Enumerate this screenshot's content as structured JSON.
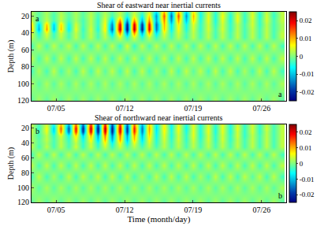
{
  "chart_data": [
    {
      "type": "heatmap",
      "title": "Shear of eastward near inertial currents",
      "y_label": "Depth (m)",
      "annotations": [
        "a",
        "a"
      ],
      "xlim": [
        2.5,
        28.5
      ],
      "xticks": [
        {
          "value": 5,
          "label": "07/05"
        },
        {
          "value": 12,
          "label": "07/12"
        },
        {
          "value": 19,
          "label": "07/19"
        },
        {
          "value": 26,
          "label": "07/26"
        }
      ],
      "ylim": [
        120,
        15
      ],
      "yticks": [
        20,
        40,
        60,
        80,
        100,
        120
      ],
      "colorbar": {
        "range": [
          -0.025,
          0.025
        ],
        "ticks": [
          -0.02,
          -0.01,
          0,
          0.01,
          0.02
        ]
      },
      "x": [
        2.5,
        3.25,
        4,
        4.75,
        5.5,
        6.25,
        7,
        7.75,
        8.5,
        9.25,
        10,
        10.75,
        11.5,
        12.25,
        13,
        13.75,
        14.5,
        15.25,
        16,
        16.75,
        17.5,
        18.25,
        19,
        19.75,
        20.5,
        21.25,
        22,
        22.75,
        23.5,
        24.25,
        25,
        25.75,
        26.5,
        27.25,
        28
      ],
      "y": [
        15,
        20,
        25,
        30,
        35,
        40,
        45,
        55,
        70,
        85,
        100,
        120
      ],
      "z": [
        [
          0.002,
          -0.002,
          0.002,
          -0.002,
          0.002,
          -0.002,
          0.002,
          -0.002,
          0.002,
          -0.002,
          0.002,
          -0.002,
          0.003,
          -0.003,
          0.003,
          -0.003,
          0.004,
          -0.008,
          0.01,
          -0.011,
          0.01,
          -0.009,
          0.007,
          -0.005,
          0.004,
          -0.004,
          0.004,
          -0.003,
          0.003,
          -0.003,
          0.004,
          -0.004,
          0.003,
          -0.003,
          0.003
        ],
        [
          0.002,
          -0.002,
          0.002,
          -0.003,
          0.003,
          -0.002,
          0.002,
          -0.002,
          0.003,
          -0.003,
          0.003,
          -0.003,
          0.004,
          -0.005,
          0.005,
          -0.006,
          0.008,
          -0.013,
          0.015,
          -0.016,
          0.015,
          -0.013,
          0.01,
          -0.006,
          0.005,
          -0.005,
          0.006,
          -0.005,
          0.005,
          -0.004,
          0.005,
          -0.005,
          0.004,
          -0.004,
          0.003
        ],
        [
          0.003,
          -0.003,
          0.003,
          -0.003,
          0.003,
          -0.003,
          0.002,
          -0.003,
          0.003,
          -0.004,
          0.005,
          -0.009,
          0.012,
          -0.013,
          0.012,
          -0.011,
          0.012,
          -0.012,
          0.012,
          -0.013,
          0.011,
          -0.01,
          0.008,
          -0.005,
          0.005,
          -0.005,
          0.005,
          -0.005,
          0.005,
          -0.004,
          0.004,
          -0.004,
          0.004,
          -0.003,
          0.003
        ],
        [
          0.007,
          -0.009,
          0.009,
          -0.009,
          0.008,
          -0.006,
          0.004,
          -0.003,
          0.003,
          -0.004,
          0.006,
          -0.014,
          0.02,
          -0.022,
          0.021,
          -0.02,
          0.019,
          -0.016,
          0.01,
          -0.008,
          0.007,
          -0.006,
          0.005,
          -0.004,
          0.004,
          -0.004,
          0.004,
          -0.004,
          0.003,
          -0.003,
          0.004,
          -0.004,
          0.003,
          -0.003,
          0.002
        ],
        [
          0.009,
          -0.011,
          0.011,
          -0.01,
          0.009,
          -0.007,
          0.005,
          -0.004,
          0.004,
          -0.005,
          0.007,
          -0.016,
          0.022,
          -0.024,
          0.023,
          -0.022,
          0.02,
          -0.015,
          0.009,
          -0.007,
          0.006,
          -0.005,
          0.004,
          -0.004,
          0.004,
          -0.003,
          0.004,
          -0.004,
          0.003,
          -0.003,
          0.003,
          -0.003,
          0.003,
          -0.003,
          0.002
        ],
        [
          0.004,
          -0.005,
          0.005,
          -0.004,
          0.004,
          -0.003,
          0.003,
          -0.003,
          0.003,
          -0.003,
          0.004,
          -0.009,
          0.012,
          -0.013,
          0.012,
          -0.011,
          0.01,
          -0.008,
          0.005,
          -0.004,
          0.004,
          -0.003,
          0.003,
          -0.003,
          0.003,
          -0.003,
          0.003,
          -0.003,
          0.003,
          -0.003,
          0.003,
          -0.003,
          0.003,
          -0.003,
          0.003
        ],
        [
          0.003,
          -0.003,
          0.003,
          -0.003,
          0.003,
          -0.003,
          0.003,
          -0.003,
          0.003,
          -0.003,
          0.003,
          -0.004,
          0.005,
          -0.005,
          0.005,
          -0.005,
          0.004,
          -0.004,
          0.003,
          -0.003,
          0.003,
          -0.003,
          0.003,
          -0.003,
          0.003,
          -0.003,
          0.003,
          -0.003,
          0.003,
          -0.003,
          0.003,
          -0.003,
          0.003,
          -0.003,
          0.003
        ],
        [
          -0.003,
          0.003,
          -0.003,
          0.003,
          -0.002,
          0.003,
          -0.003,
          0.003,
          -0.003,
          0.003,
          -0.003,
          0.003,
          -0.004,
          0.004,
          -0.004,
          0.003,
          -0.003,
          0.003,
          -0.003,
          0.003,
          -0.003,
          0.003,
          -0.003,
          0.003,
          -0.003,
          0.003,
          -0.003,
          0.003,
          -0.003,
          0.003,
          -0.003,
          0.003,
          -0.003,
          0.003,
          -0.003
        ],
        [
          0.003,
          -0.003,
          0.003,
          -0.003,
          0.003,
          -0.003,
          0.003,
          -0.003,
          0.003,
          -0.003,
          0.003,
          -0.003,
          0.003,
          -0.003,
          0.003,
          -0.003,
          0.003,
          -0.003,
          0.003,
          -0.003,
          0.003,
          -0.003,
          0.003,
          -0.003,
          0.003,
          -0.003,
          0.003,
          -0.003,
          0.003,
          -0.003,
          0.003,
          -0.003,
          0.003,
          -0.003,
          0.003
        ],
        [
          -0.003,
          0.002,
          -0.003,
          0.003,
          -0.003,
          0.002,
          -0.003,
          0.003,
          -0.003,
          0.003,
          -0.002,
          0.003,
          -0.003,
          0.003,
          -0.003,
          0.003,
          -0.003,
          0.002,
          -0.003,
          0.003,
          -0.003,
          0.003,
          -0.002,
          0.003,
          -0.003,
          0.003,
          -0.003,
          0.003,
          -0.003,
          0.002,
          -0.003,
          0.003,
          -0.003,
          0.003,
          -0.003
        ],
        [
          0.002,
          -0.002,
          0.002,
          -0.002,
          0.002,
          -0.002,
          0.002,
          -0.002,
          0.002,
          -0.002,
          0.002,
          -0.002,
          0.002,
          -0.002,
          0.002,
          -0.002,
          0.002,
          -0.002,
          0.002,
          -0.002,
          0.002,
          -0.002,
          0.002,
          -0.002,
          0.002,
          -0.002,
          0.002,
          -0.002,
          0.002,
          -0.002,
          0.002,
          -0.002,
          0.002,
          -0.002,
          0.002
        ],
        [
          -0.002,
          0.002,
          -0.002,
          0.002,
          -0.002,
          0.002,
          -0.002,
          0.002,
          -0.002,
          0.002,
          -0.002,
          0.002,
          -0.002,
          0.002,
          -0.002,
          0.002,
          -0.002,
          0.002,
          -0.002,
          0.002,
          -0.002,
          0.002,
          -0.002,
          0.002,
          -0.002,
          0.002,
          -0.002,
          0.002,
          -0.002,
          0.002,
          -0.002,
          0.002,
          -0.002,
          0.002,
          -0.002
        ]
      ]
    },
    {
      "type": "heatmap",
      "title": "Shear of northward near inertial currents",
      "x_label": "Time (month/day)",
      "y_label": "Depth (m)",
      "annotations": [
        "b",
        "b"
      ],
      "xlim": [
        2.5,
        28.5
      ],
      "xticks": [
        {
          "value": 5,
          "label": "07/05"
        },
        {
          "value": 12,
          "label": "07/12"
        },
        {
          "value": 19,
          "label": "07/19"
        },
        {
          "value": 26,
          "label": "07/26"
        }
      ],
      "ylim": [
        120,
        15
      ],
      "yticks": [
        20,
        40,
        60,
        80,
        100,
        120
      ],
      "colorbar": {
        "range": [
          -0.025,
          0.025
        ],
        "ticks": [
          -0.02,
          -0.01,
          0,
          0.01,
          0.02
        ]
      },
      "x": [
        2.5,
        3.25,
        4,
        4.75,
        5.5,
        6.25,
        7,
        7.75,
        8.5,
        9.25,
        10,
        10.75,
        11.5,
        12.25,
        13,
        13.75,
        14.5,
        15.25,
        16,
        16.75,
        17.5,
        18.25,
        19,
        19.75,
        20.5,
        21.25,
        22,
        22.75,
        23.5,
        24.25,
        25,
        25.75,
        26.5,
        27.25,
        28
      ],
      "y": [
        15,
        20,
        25,
        30,
        35,
        40,
        45,
        55,
        70,
        85,
        100,
        120
      ],
      "z": [
        [
          0.003,
          -0.003,
          0.004,
          -0.006,
          0.01,
          -0.012,
          0.014,
          -0.016,
          0.017,
          -0.018,
          0.018,
          -0.018,
          0.017,
          -0.016,
          0.014,
          -0.012,
          0.009,
          -0.007,
          0.006,
          -0.006,
          0.005,
          -0.005,
          0.005,
          -0.005,
          0.004,
          -0.004,
          0.005,
          -0.005,
          0.004,
          -0.004,
          0.004,
          -0.004,
          0.003,
          -0.003,
          0.003
        ],
        [
          0.003,
          -0.004,
          0.006,
          -0.009,
          0.014,
          -0.017,
          0.019,
          -0.021,
          0.022,
          -0.023,
          0.023,
          -0.022,
          0.021,
          -0.02,
          0.018,
          -0.015,
          0.011,
          -0.008,
          0.007,
          -0.006,
          0.006,
          -0.006,
          0.005,
          -0.005,
          0.005,
          -0.005,
          0.005,
          -0.005,
          0.005,
          -0.004,
          0.004,
          -0.004,
          0.004,
          -0.003,
          0.003
        ],
        [
          0.003,
          -0.003,
          0.005,
          -0.008,
          0.012,
          -0.015,
          0.017,
          -0.019,
          0.02,
          -0.021,
          0.021,
          -0.021,
          0.02,
          -0.019,
          0.017,
          -0.014,
          0.01,
          -0.007,
          0.006,
          -0.005,
          0.005,
          -0.005,
          0.005,
          -0.005,
          0.005,
          -0.005,
          0.005,
          -0.005,
          0.004,
          -0.004,
          0.004,
          -0.004,
          0.003,
          -0.003,
          0.003
        ],
        [
          0.002,
          -0.003,
          0.003,
          -0.004,
          0.005,
          -0.006,
          0.008,
          -0.009,
          0.01,
          -0.012,
          0.013,
          -0.014,
          0.013,
          -0.012,
          0.011,
          -0.01,
          0.008,
          -0.006,
          0.005,
          -0.005,
          0.004,
          -0.004,
          0.005,
          -0.005,
          0.004,
          -0.004,
          0.004,
          -0.004,
          0.004,
          -0.004,
          0.003,
          -0.003,
          0.003,
          -0.003,
          0.003
        ],
        [
          0.002,
          -0.002,
          0.003,
          -0.003,
          0.003,
          -0.004,
          0.005,
          -0.006,
          0.007,
          -0.009,
          0.01,
          -0.011,
          0.011,
          -0.01,
          0.009,
          -0.008,
          0.006,
          -0.005,
          0.004,
          -0.004,
          0.004,
          -0.004,
          0.004,
          -0.004,
          0.004,
          -0.004,
          0.004,
          -0.004,
          0.003,
          -0.003,
          0.003,
          -0.003,
          0.003,
          -0.003,
          0.003
        ],
        [
          0.002,
          -0.002,
          0.002,
          -0.003,
          0.003,
          -0.003,
          0.003,
          -0.004,
          0.004,
          -0.005,
          0.006,
          -0.006,
          0.006,
          -0.006,
          0.005,
          -0.005,
          0.004,
          -0.004,
          0.003,
          -0.003,
          0.003,
          -0.003,
          0.003,
          -0.003,
          0.003,
          -0.003,
          0.003,
          -0.003,
          0.003,
          -0.003,
          0.003,
          -0.003,
          0.003,
          -0.003,
          0.003
        ],
        [
          0.003,
          -0.003,
          0.003,
          -0.003,
          0.003,
          -0.003,
          0.004,
          -0.004,
          0.004,
          -0.004,
          0.004,
          -0.004,
          0.004,
          -0.003,
          0.003,
          -0.003,
          0.003,
          -0.003,
          0.003,
          -0.003,
          0.003,
          -0.003,
          0.003,
          -0.003,
          0.003,
          -0.003,
          0.003,
          -0.003,
          0.003,
          -0.003,
          0.003,
          -0.003,
          0.003,
          -0.003,
          0.003
        ],
        [
          -0.003,
          0.003,
          -0.003,
          0.003,
          -0.003,
          0.003,
          -0.003,
          0.003,
          -0.003,
          0.003,
          -0.003,
          0.003,
          -0.003,
          0.003,
          -0.003,
          0.003,
          -0.003,
          0.003,
          -0.003,
          0.003,
          -0.003,
          0.003,
          -0.003,
          0.003,
          -0.003,
          0.003,
          -0.003,
          0.003,
          -0.003,
          0.003,
          -0.003,
          0.003,
          -0.003,
          0.003,
          -0.003
        ],
        [
          0.003,
          -0.003,
          0.003,
          -0.003,
          0.003,
          -0.003,
          0.003,
          -0.003,
          0.003,
          -0.003,
          0.003,
          -0.003,
          0.003,
          -0.003,
          0.003,
          -0.003,
          0.003,
          -0.003,
          0.003,
          -0.003,
          0.003,
          -0.003,
          0.003,
          -0.003,
          0.003,
          -0.003,
          0.003,
          -0.003,
          0.003,
          -0.003,
          0.003,
          -0.003,
          0.003,
          -0.003,
          0.003
        ],
        [
          -0.003,
          0.003,
          -0.003,
          0.002,
          -0.003,
          0.003,
          -0.003,
          0.003,
          -0.002,
          0.003,
          -0.003,
          0.003,
          -0.003,
          0.003,
          -0.003,
          0.002,
          -0.003,
          0.003,
          -0.003,
          0.003,
          -0.003,
          0.003,
          -0.003,
          0.002,
          -0.003,
          0.003,
          -0.003,
          0.003,
          -0.003,
          0.003,
          -0.002,
          0.003,
          -0.003,
          0.003,
          -0.003
        ],
        [
          0.002,
          -0.002,
          0.002,
          -0.002,
          0.002,
          -0.002,
          0.002,
          -0.002,
          0.002,
          -0.002,
          0.002,
          -0.002,
          0.002,
          -0.002,
          0.002,
          -0.002,
          0.002,
          -0.002,
          0.002,
          -0.002,
          0.002,
          -0.002,
          0.002,
          -0.002,
          0.002,
          -0.002,
          0.002,
          -0.002,
          0.002,
          -0.002,
          0.002,
          -0.002,
          0.002,
          -0.002,
          0.002
        ],
        [
          -0.002,
          0.002,
          -0.002,
          0.002,
          -0.002,
          0.002,
          -0.002,
          0.002,
          -0.002,
          0.002,
          -0.002,
          0.002,
          -0.002,
          0.002,
          -0.002,
          0.002,
          -0.002,
          0.002,
          -0.002,
          0.002,
          -0.002,
          0.002,
          -0.002,
          0.002,
          -0.002,
          0.002,
          -0.002,
          0.002,
          -0.002,
          0.002,
          -0.002,
          0.002,
          -0.002,
          0.002,
          -0.002
        ]
      ]
    }
  ]
}
